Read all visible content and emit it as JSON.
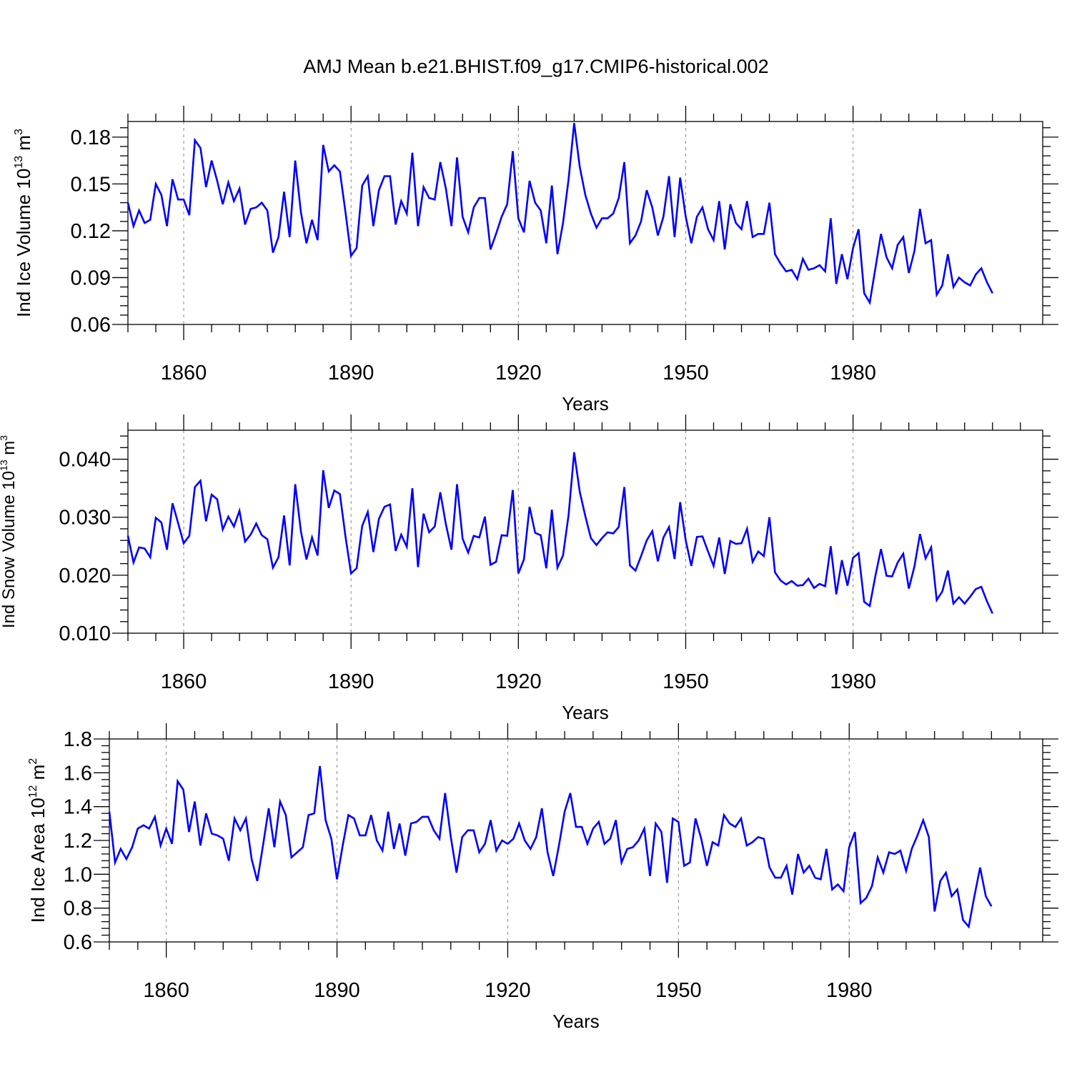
{
  "figure": {
    "title": "AMJ Mean b.e21.BHIST.f09_g17.CMIP6-historical.002"
  },
  "colors": {
    "series": "#0000ff",
    "axes": "#000000",
    "grid": "#888888"
  },
  "chart_data": [
    {
      "type": "line",
      "title": "",
      "xlabel": "Years",
      "ylabel_main": "Ind Ice Volume 10",
      "ylabel_exp": "13",
      "ylabel_unit": " m",
      "ylabel_unit_exp": "3",
      "xlim": [
        1850,
        2014
      ],
      "ylim": [
        0.06,
        0.19
      ],
      "xticks": [
        1860,
        1890,
        1920,
        1950,
        1980
      ],
      "xtick_labels": [
        "1860",
        "1890",
        "1920",
        "1950",
        "1980"
      ],
      "yticks": [
        0.06,
        0.09,
        0.12,
        0.15,
        0.18
      ],
      "ytick_labels": [
        "0.06",
        "0.09",
        "0.12",
        "0.15",
        "0.18"
      ],
      "ylabel_fontsize": 26,
      "grid_x_dashed": true,
      "series": [
        {
          "name": "Ind Ice Volume",
          "x_start": 1850,
          "values": [
            0.138,
            0.123,
            0.133,
            0.125,
            0.127,
            0.15,
            0.143,
            0.123,
            0.153,
            0.14,
            0.14,
            0.13,
            0.178,
            0.173,
            0.148,
            0.165,
            0.152,
            0.137,
            0.151,
            0.139,
            0.147,
            0.124,
            0.134,
            0.135,
            0.138,
            0.133,
            0.106,
            0.116,
            0.145,
            0.116,
            0.165,
            0.132,
            0.112,
            0.127,
            0.114,
            0.175,
            0.158,
            0.162,
            0.158,
            0.132,
            0.104,
            0.109,
            0.149,
            0.155,
            0.123,
            0.146,
            0.155,
            0.155,
            0.124,
            0.139,
            0.131,
            0.17,
            0.123,
            0.148,
            0.141,
            0.14,
            0.164,
            0.147,
            0.123,
            0.167,
            0.129,
            0.119,
            0.135,
            0.141,
            0.141,
            0.108,
            0.118,
            0.129,
            0.137,
            0.171,
            0.128,
            0.119,
            0.152,
            0.138,
            0.133,
            0.112,
            0.149,
            0.105,
            0.125,
            0.153,
            0.189,
            0.161,
            0.143,
            0.131,
            0.122,
            0.128,
            0.128,
            0.131,
            0.141,
            0.164,
            0.112,
            0.117,
            0.126,
            0.146,
            0.135,
            0.117,
            0.129,
            0.155,
            0.116,
            0.154,
            0.129,
            0.112,
            0.129,
            0.135,
            0.121,
            0.114,
            0.139,
            0.108,
            0.137,
            0.125,
            0.121,
            0.139,
            0.116,
            0.118,
            0.118,
            0.138,
            0.105,
            0.099,
            0.094,
            0.095,
            0.089,
            0.102,
            0.095,
            0.096,
            0.098,
            0.094,
            0.128,
            0.086,
            0.105,
            0.089,
            0.109,
            0.121,
            0.08,
            0.074,
            0.096,
            0.118,
            0.103,
            0.096,
            0.111,
            0.116,
            0.093,
            0.107,
            0.134,
            0.112,
            0.114,
            0.079,
            0.085,
            0.105,
            0.084,
            0.09,
            0.087,
            0.085,
            0.092,
            0.096,
            0.087,
            0.08
          ]
        }
      ]
    },
    {
      "type": "line",
      "title": "",
      "xlabel": "Years",
      "ylabel_main": "Ind Snow Volume 10",
      "ylabel_exp": "13",
      "ylabel_unit": " m",
      "ylabel_unit_exp": "3",
      "xlim": [
        1850,
        2014
      ],
      "ylim": [
        0.01,
        0.045
      ],
      "xticks": [
        1860,
        1890,
        1920,
        1950,
        1980
      ],
      "xtick_labels": [
        "1860",
        "1890",
        "1920",
        "1950",
        "1980"
      ],
      "yticks": [
        0.01,
        0.02,
        0.03,
        0.04
      ],
      "ytick_labels": [
        "0.010",
        "0.020",
        "0.030",
        "0.040"
      ],
      "ylabel_fontsize": 24,
      "grid_x_dashed": true,
      "series": [
        {
          "name": "Ind Snow Volume",
          "x_start": 1850,
          "values": [
            0.0268,
            0.0222,
            0.0248,
            0.0246,
            0.0231,
            0.0299,
            0.0291,
            0.0244,
            0.0324,
            0.029,
            0.0255,
            0.0268,
            0.0352,
            0.0363,
            0.0293,
            0.0339,
            0.0331,
            0.0279,
            0.0301,
            0.0284,
            0.0311,
            0.0258,
            0.027,
            0.0289,
            0.0269,
            0.0262,
            0.0213,
            0.0231,
            0.0303,
            0.0217,
            0.0357,
            0.0276,
            0.0227,
            0.0265,
            0.0234,
            0.0381,
            0.0316,
            0.0346,
            0.034,
            0.0267,
            0.0203,
            0.0212,
            0.0285,
            0.0309,
            0.024,
            0.0297,
            0.0318,
            0.0322,
            0.0242,
            0.027,
            0.0249,
            0.035,
            0.0214,
            0.0306,
            0.0274,
            0.0284,
            0.0343,
            0.0288,
            0.0244,
            0.0357,
            0.0263,
            0.0239,
            0.0268,
            0.0265,
            0.0301,
            0.0218,
            0.0223,
            0.0269,
            0.0268,
            0.0347,
            0.0203,
            0.0227,
            0.0318,
            0.0273,
            0.0269,
            0.0212,
            0.0313,
            0.0213,
            0.0234,
            0.0304,
            0.0412,
            0.0344,
            0.0302,
            0.0264,
            0.0252,
            0.0264,
            0.0274,
            0.0272,
            0.0283,
            0.0352,
            0.0217,
            0.0208,
            0.0233,
            0.026,
            0.0276,
            0.0224,
            0.0265,
            0.0283,
            0.0228,
            0.0326,
            0.026,
            0.0216,
            0.0266,
            0.0267,
            0.0241,
            0.0216,
            0.0265,
            0.0202,
            0.0259,
            0.0254,
            0.0255,
            0.028,
            0.0223,
            0.0241,
            0.0233,
            0.03,
            0.0205,
            0.0191,
            0.0184,
            0.019,
            0.0182,
            0.0183,
            0.0194,
            0.0178,
            0.0185,
            0.0181,
            0.025,
            0.0167,
            0.0226,
            0.0182,
            0.023,
            0.0238,
            0.0154,
            0.0147,
            0.0199,
            0.0245,
            0.0199,
            0.0198,
            0.0222,
            0.0237,
            0.0177,
            0.0215,
            0.0271,
            0.0229,
            0.0248,
            0.0157,
            0.0172,
            0.0208,
            0.0151,
            0.0162,
            0.0151,
            0.0163,
            0.0176,
            0.018,
            0.0155,
            0.0134
          ]
        }
      ]
    },
    {
      "type": "line",
      "title": "",
      "xlabel": "Years",
      "ylabel_main": "Ind Ice Area 10",
      "ylabel_exp": "12",
      "ylabel_unit": " m",
      "ylabel_unit_exp": "2",
      "xlim": [
        1850,
        2014
      ],
      "ylim": [
        0.6,
        1.8
      ],
      "xticks": [
        1860,
        1890,
        1920,
        1950,
        1980
      ],
      "xtick_labels": [
        "1860",
        "1890",
        "1920",
        "1950",
        "1980"
      ],
      "yticks": [
        0.6,
        0.8,
        1.0,
        1.2,
        1.4,
        1.6,
        1.8
      ],
      "ytick_labels": [
        "0.6",
        "0.8",
        "1.0",
        "1.2",
        "1.4",
        "1.6",
        "1.8"
      ],
      "ylabel_fontsize": 26,
      "grid_x_dashed": true,
      "series": [
        {
          "name": "Ind Ice Area",
          "x_start": 1850,
          "values": [
            1.37,
            1.07,
            1.15,
            1.09,
            1.16,
            1.27,
            1.29,
            1.27,
            1.34,
            1.17,
            1.27,
            1.18,
            1.55,
            1.5,
            1.25,
            1.43,
            1.17,
            1.36,
            1.24,
            1.23,
            1.21,
            1.08,
            1.33,
            1.26,
            1.33,
            1.09,
            0.96,
            1.17,
            1.39,
            1.16,
            1.43,
            1.35,
            1.1,
            1.13,
            1.16,
            1.35,
            1.36,
            1.64,
            1.32,
            1.21,
            0.97,
            1.17,
            1.35,
            1.33,
            1.23,
            1.23,
            1.35,
            1.2,
            1.14,
            1.37,
            1.15,
            1.3,
            1.11,
            1.3,
            1.31,
            1.34,
            1.34,
            1.26,
            1.21,
            1.48,
            1.22,
            1.01,
            1.22,
            1.26,
            1.26,
            1.13,
            1.18,
            1.32,
            1.14,
            1.2,
            1.18,
            1.21,
            1.3,
            1.2,
            1.15,
            1.22,
            1.39,
            1.13,
            0.99,
            1.17,
            1.37,
            1.48,
            1.28,
            1.28,
            1.18,
            1.27,
            1.31,
            1.18,
            1.21,
            1.32,
            1.07,
            1.15,
            1.16,
            1.2,
            1.27,
            0.99,
            1.3,
            1.25,
            0.95,
            1.33,
            1.31,
            1.05,
            1.07,
            1.33,
            1.21,
            1.05,
            1.19,
            1.17,
            1.35,
            1.3,
            1.28,
            1.33,
            1.17,
            1.19,
            1.22,
            1.21,
            1.04,
            0.98,
            0.98,
            1.05,
            0.88,
            1.12,
            1.01,
            1.05,
            0.98,
            0.97,
            1.15,
            0.91,
            0.94,
            0.9,
            1.16,
            1.25,
            0.83,
            0.86,
            0.93,
            1.1,
            1.01,
            1.13,
            1.12,
            1.14,
            1.02,
            1.15,
            1.23,
            1.32,
            1.22,
            0.78,
            0.96,
            1.01,
            0.87,
            0.91,
            0.73,
            0.69,
            0.87,
            1.04,
            0.87,
            0.81
          ]
        }
      ]
    }
  ]
}
